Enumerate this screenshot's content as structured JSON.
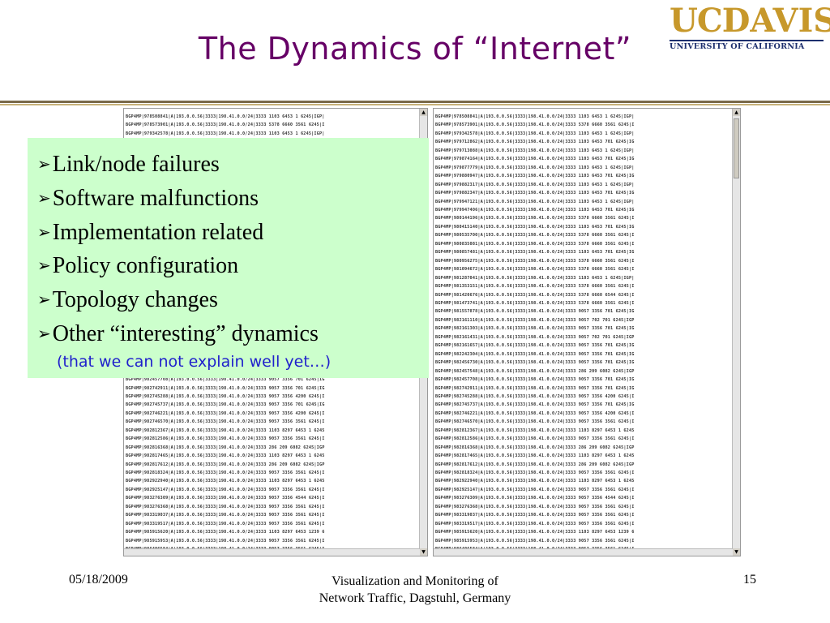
{
  "slide": {
    "title": "The Dynamics of “Internet”",
    "logo": {
      "uc": "UC",
      "davis": "DAVIS",
      "subtitle": "UNIVERSITY OF CALIFORNIA"
    },
    "bullets": [
      "Link/node failures",
      "Software malfunctions",
      "Implementation related",
      "Policy configuration",
      "Topology changes",
      "Other “interesting” dynamics"
    ],
    "note": "(that we can not explain well yet…)",
    "footer": {
      "date": "05/18/2009",
      "line1": "Visualization and Monitoring of",
      "line2": "Network Traffic, Dagstuhl, Germany",
      "page": "15"
    }
  },
  "bgp_log": {
    "left": [
      "BGP4MP|978508841|A|193.0.0.56|3333|198.41.0.0/24|3333 1103 6453 1 6245|IGP|",
      "BGP4MP|978573901|A|193.0.0.56|3333|198.41.0.0/24|3333 5378 6660 3561 6245|I",
      "BGP4MP|979342578|A|193.0.0.56|3333|198.41.0.0/24|3333 1103 6453 1 6245|IGP|",
      "BGP4MP|979712862|A|193.0.0.56|3333|198.41.0.0/24|3333 1103 6453 701 6245|IG",
      "BGP4MP|979713088|A|193.0.0.56|3333|198.41.0.0/24|3333 1103 6453 1 6245|IGP|",
      "BGP4MP|979874164|A|193.0.0.56|3333|198.41.0.0/24|3333 1103 6453 701 6245|IG",
      "BGP4MP|979877779|A|193.0.0.56|3333|198.41.0.0/24|3333 1103 6453 1 6245|IGP|",
      "BGP4MP|979880947|A|193.0.0.56|3333|198.41.0.0/24|3333 1103 6453 701 6245|IG",
      "BGP4MP|979882317|A|193.0.0.56|3333|198.41.0.0/24|3333 1103 6453 1 6245|IGP|",
      "BGP4MP|979882347|A|193.0.0.56|3333|198.41.0.0/24|3333 1103 6453 701 6245|IG",
      "BGP4MP|979947121|A|193.0.0.56|3333|198.41.0.0/24|3333 1103 6453 1 6245|IGP|",
      "BGP4MP|979947406|A|193.0.0.56|3333|198.41.0.0/24|3333 1103 6453 701 6245|IG",
      "BGP4MP|980144196|A|193.0.0.56|3333|198.41.0.0/24|3333 5378 6660 3561 6245|I",
      "BGP4MP|980415140|A|193.0.0.56|3333|198.41.0.0/24|3333 1103 6453 701 6245|IG",
      "BGP4MP|980535700|A|193.0.0.56|3333|198.41.0.0/24|3333 5378 6660 3561 6245|I",
      "BGP4MP|980835081|A|193.0.0.56|3333|198.41.0.0/24|3333 5378 6660 3561 6245|I",
      "BGP4MP|980857481|A|193.0.0.56|3333|198.41.0.0/24|3333 1103 6453 701 6245|IG",
      "BGP4MP|980956275|A|193.0.0.56|3333|198.41.0.0/24|3333 5378 6660 3561 6245|I",
      "BGP4MP|981094672|A|193.0.0.56|3333|198.41.0.0/24|3333 5378 6660 3561 6245|I",
      "BGP4MP|981287041|A|193.0.0.56|3333|198.41.0.0/24|3333 1103 6453 1 6245|IGP|",
      "BGP4MP|981353151|A|193.0.0.56|3333|198.41.0.0/24|3333 5378 6660 3561 6245|I",
      "BGP4MP|981420676|A|193.0.0.56|3333|198.41.0.0/24|3333 5378 6660 6544 6245|I",
      "BGP4MP|981473741|A|193.0.0.56|3333|198.41.0.0/24|3333 5378 6660 3561 6245|I",
      "BGP4MP|981557878|A|193.0.0.56|3333|198.41.0.0/24|3333 9057 3356 701 6245|IG",
      "BGP4MP|982161110|A|193.0.0.56|3333|198.41.0.0/24|3333 9057 702 701 6245|IGP",
      "BGP4MP|982161303|A|193.0.0.56|3333|198.41.0.0/24|3333 9057 3356 701 6245|IG",
      "BGP4MP|982161431|A|193.0.0.56|3333|198.41.0.0/24|3333 9057 702 701 6245|IGP",
      "BGP4MP|982161657|A|193.0.0.56|3333|198.41.0.0/24|3333 9057 3356 701 6245|IG",
      "BGP4MP|982242304|A|193.0.0.56|3333|198.41.0.0/24|3333 9057 3356 701 6245|IG",
      "BGP4MP|982456730|A|193.0.0.56|3333|198.41.0.0/24|3333 9057 3356 701 6245|IG",
      "BGP4MP|982457548|A|193.0.0.56|3333|198.41.0.0/24|3333 286 209 6082 6245|IGP",
      "BGP4MP|982457708|A|193.0.0.56|3333|198.41.0.0/24|3333 9057 3356 701 6245|IG",
      "BGP4MP|982742911|A|193.0.0.56|3333|198.41.0.0/24|3333 9057 3356 701 6245|IG",
      "BGP4MP|982745288|A|193.0.0.56|3333|198.41.0.0/24|3333 9057 3356 4200 6245|I",
      "BGP4MP|982745737|A|193.0.0.56|3333|198.41.0.0/24|3333 9057 3356 701 6245|IG",
      "BGP4MP|982746221|A|193.0.0.56|3333|198.41.0.0/24|3333 9057 3356 4200 6245|I",
      "BGP4MP|982746570|A|193.0.0.56|3333|198.41.0.0/24|3333 9057 3356 3561 6245|I",
      "BGP4MP|982812367|A|193.0.0.56|3333|198.41.0.0/24|3333 1103 8297 6453 1 6245",
      "BGP4MP|982812586|A|193.0.0.56|3333|198.41.0.0/24|3333 9057 3356 3561 6245|I",
      "BGP4MP|982816368|A|193.0.0.56|3333|198.41.0.0/24|3333 286 209 6082 6245|IGP",
      "BGP4MP|982817465|A|193.0.0.56|3333|198.41.0.0/24|3333 1103 8297 6453 1 6245",
      "BGP4MP|982817612|A|193.0.0.56|3333|198.41.0.0/24|3333 286 209 6082 6245|IGP",
      "BGP4MP|982818324|A|193.0.0.56|3333|198.41.0.0/24|3333 9057 3356 3561 6245|I",
      "BGP4MP|982922940|A|193.0.0.56|3333|198.41.0.0/24|3333 1103 8297 6453 1 6245",
      "BGP4MP|982925147|A|193.0.0.56|3333|198.41.0.0/24|3333 9057 3356 3561 6245|I",
      "BGP4MP|983276309|A|193.0.0.56|3333|198.41.0.0/24|3333 9057 3356 4544 6245|I",
      "BGP4MP|983276368|A|193.0.0.56|3333|198.41.0.0/24|3333 9057 3356 3561 6245|I",
      "BGP4MP|983319037|A|193.0.0.56|3333|198.41.0.0/24|3333 9057 3356 3561 6245|I",
      "BGP4MP|983319517|A|193.0.0.56|3333|198.41.0.0/24|3333 9057 3356 3561 6245|I",
      "BGP4MP|985915620|A|193.0.0.56|3333|198.41.0.0/24|3333 1103 8297 6453 1239 6",
      "BGP4MP|985915953|A|193.0.0.56|3333|198.41.0.0/24|3333 9057 3356 3561 6245|I",
      "BGP4MP|986406584|A|193.0.0.56|3333|198.41.0.0/24|3333 9057 3356 3561 6245|I",
      "BGP4MP|986406864|A|193.0.0.56|3333|198.41.0.0/24|3333 9057 3356 3561 6245|I",
      "BGP4MP|986440335|A|193.0.0.56|3333|198.41.0.0/24|3333 1103 8297 6453 1239 6",
      "BGP4MP|986440743|A|193.0.0.56|3333|198.41.0.0/24|3333 9057 3356 3561 6245|I",
      "BGP4MP|986549778|A|193.0.0.56|3333|198.41.0.0/24|3333 9057 3356 1 6245|IGP|"
    ],
    "right": [
      "BGP4MP|978508841|A|193.0.0.56|3333|198.41.0.0/24|3333 1103 6453 1 6245|IGP|",
      "BGP4MP|978573901|A|193.0.0.56|3333|198.41.0.0/24|3333 5378 6660 3561 6245|I",
      "BGP4MP|979342578|A|193.0.0.56|3333|198.41.0.0/24|3333 1103 6453 1 6245|IGP|",
      "BGP4MP|979712862|A|193.0.0.56|3333|198.41.0.0/24|3333 1103 6453 701 6245|IG",
      "BGP4MP|979713088|A|193.0.0.56|3333|198.41.0.0/24|3333 1103 6453 1 6245|IGP|",
      "BGP4MP|979874164|A|193.0.0.56|3333|198.41.0.0/24|3333 1103 6453 701 6245|IG",
      "BGP4MP|979877779|A|193.0.0.56|3333|198.41.0.0/24|3333 1103 6453 1 6245|IGP|",
      "BGP4MP|979880947|A|193.0.0.56|3333|198.41.0.0/24|3333 1103 6453 701 6245|IG",
      "BGP4MP|979882317|A|193.0.0.56|3333|198.41.0.0/24|3333 1103 6453 1 6245|IGP|",
      "BGP4MP|979882347|A|193.0.0.56|3333|198.41.0.0/24|3333 1103 6453 701 6245|IG",
      "BGP4MP|979947121|A|193.0.0.56|3333|198.41.0.0/24|3333 1103 6453 1 6245|IGP|",
      "BGP4MP|979947406|A|193.0.0.56|3333|198.41.0.0/24|3333 1103 6453 701 6245|IG",
      "BGP4MP|980144196|A|193.0.0.56|3333|198.41.0.0/24|3333 5378 6660 3561 6245|I",
      "BGP4MP|980415140|A|193.0.0.56|3333|198.41.0.0/24|3333 1103 6453 701 6245|IG",
      "BGP4MP|980535700|A|193.0.0.56|3333|198.41.0.0/24|3333 5378 6660 3561 6245|I",
      "BGP4MP|980835081|A|193.0.0.56|3333|198.41.0.0/24|3333 5378 6660 3561 6245|I",
      "BGP4MP|980857481|A|193.0.0.56|3333|198.41.0.0/24|3333 1103 6453 701 6245|IG",
      "BGP4MP|980956275|A|193.0.0.56|3333|198.41.0.0/24|3333 5378 6660 3561 6245|I",
      "BGP4MP|981094672|A|193.0.0.56|3333|198.41.0.0/24|3333 5378 6660 3561 6245|I",
      "BGP4MP|981287041|A|193.0.0.56|3333|198.41.0.0/24|3333 1103 6453 1 6245|IGP|",
      "BGP4MP|981353151|A|193.0.0.56|3333|198.41.0.0/24|3333 5378 6660 3561 6245|I",
      "BGP4MP|981420676|A|193.0.0.56|3333|198.41.0.0/24|3333 5378 6660 6544 6245|I",
      "BGP4MP|981473741|A|193.0.0.56|3333|198.41.0.0/24|3333 5378 6660 3561 6245|I",
      "BGP4MP|981557878|A|193.0.0.56|3333|198.41.0.0/24|3333 9057 3356 701 6245|IG",
      "BGP4MP|982161110|A|193.0.0.56|3333|198.41.0.0/24|3333 9057 702 701 6245|IGP",
      "BGP4MP|982161303|A|193.0.0.56|3333|198.41.0.0/24|3333 9057 3356 701 6245|IG",
      "BGP4MP|982161431|A|193.0.0.56|3333|198.41.0.0/24|3333 9057 702 701 6245|IGP",
      "BGP4MP|982161657|A|193.0.0.56|3333|198.41.0.0/24|3333 9057 3356 701 6245|IG",
      "BGP4MP|982242304|A|193.0.0.56|3333|198.41.0.0/24|3333 9057 3356 701 6245|IG",
      "BGP4MP|982456730|A|193.0.0.56|3333|198.41.0.0/24|3333 9057 3356 701 6245|IG",
      "BGP4MP|982457548|A|193.0.0.56|3333|198.41.0.0/24|3333 286 209 6082 6245|IGP",
      "BGP4MP|982457708|A|193.0.0.56|3333|198.41.0.0/24|3333 9057 3356 701 6245|IG",
      "BGP4MP|982742911|A|193.0.0.56|3333|198.41.0.0/24|3333 9057 3356 701 6245|IG",
      "BGP4MP|982745288|A|193.0.0.56|3333|198.41.0.0/24|3333 9057 3356 4200 6245|I",
      "BGP4MP|982745737|A|193.0.0.56|3333|198.41.0.0/24|3333 9057 3356 701 6245|IG",
      "BGP4MP|982746221|A|193.0.0.56|3333|198.41.0.0/24|3333 9057 3356 4200 6245|I",
      "BGP4MP|982746570|A|193.0.0.56|3333|198.41.0.0/24|3333 9057 3356 3561 6245|I",
      "BGP4MP|982812367|A|193.0.0.56|3333|198.41.0.0/24|3333 1103 8297 6453 1 6245",
      "BGP4MP|982812586|A|193.0.0.56|3333|198.41.0.0/24|3333 9057 3356 3561 6245|I",
      "BGP4MP|982816368|A|193.0.0.56|3333|198.41.0.0/24|3333 286 209 6082 6245|IGP",
      "BGP4MP|982817465|A|193.0.0.56|3333|198.41.0.0/24|3333 1103 8297 6453 1 6245",
      "BGP4MP|982817612|A|193.0.0.56|3333|198.41.0.0/24|3333 286 209 6082 6245|IGP",
      "BGP4MP|982818324|A|193.0.0.56|3333|198.41.0.0/24|3333 9057 3356 3561 6245|I",
      "BGP4MP|982922940|A|193.0.0.56|3333|198.41.0.0/24|3333 1103 8297 6453 1 6245",
      "BGP4MP|982925147|A|193.0.0.56|3333|198.41.0.0/24|3333 9057 3356 3561 6245|I",
      "BGP4MP|983276309|A|193.0.0.56|3333|198.41.0.0/24|3333 9057 3356 4544 6245|I",
      "BGP4MP|983276368|A|193.0.0.56|3333|198.41.0.0/24|3333 9057 3356 3561 6245|I",
      "BGP4MP|983319037|A|193.0.0.56|3333|198.41.0.0/24|3333 9057 3356 3561 6245|I",
      "BGP4MP|983319517|A|193.0.0.56|3333|198.41.0.0/24|3333 9057 3356 3561 6245|I",
      "BGP4MP|985915620|A|193.0.0.56|3333|198.41.0.0/24|3333 1103 8297 6453 1239 6",
      "BGP4MP|985915953|A|193.0.0.56|3333|198.41.0.0/24|3333 9057 3356 3561 6245|I",
      "BGP4MP|986406584|A|193.0.0.56|3333|198.41.0.0/24|3333 9057 3356 3561 6245|I",
      "BGP4MP|986406864|A|193.0.0.56|3333|198.41.0.0/24|3333 9057 3356 3561 6245|I",
      "BGP4MP|986440335|A|193.0.0.56|3333|198.41.0.0/24|3333 1103 8297 6453 1239 6",
      "BGP4MP|986440743|A|193.0.0.56|3333|198.41.0.0/24|3333 9057 3356 3561 6245|I",
      "BGP4MP|986549778|A|193.0.0.56|3333|198.41.0.0/24|3333 9057 3356 1 6245|IGP|"
    ]
  },
  "icons": {
    "bullet": "arrow-right-icon",
    "scroll_up": "scroll-up-icon",
    "scroll_down": "scroll-down-icon"
  },
  "colors": {
    "title": "#660066",
    "callout_bg": "#ccffcc",
    "note": "#1f1fcc",
    "logo_gold": "#c7982b",
    "logo_navy": "#1d2f6e"
  }
}
